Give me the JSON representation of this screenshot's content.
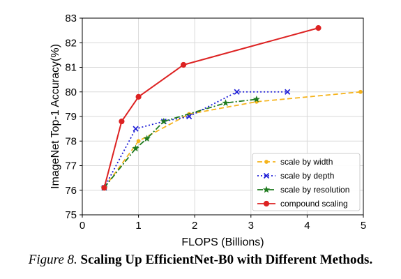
{
  "chart_data": {
    "type": "line",
    "xlabel": "FLOPS (Billions)",
    "ylabel": "ImageNet Top-1 Accuracy(%)",
    "xlim": [
      0,
      5
    ],
    "ylim": [
      75,
      83
    ],
    "xticks": [
      "0",
      "1",
      "2",
      "3",
      "4",
      "5"
    ],
    "yticks": [
      "75",
      "76",
      "77",
      "78",
      "79",
      "80",
      "81",
      "82",
      "83"
    ],
    "grid": true,
    "legend_position": "lower-right",
    "series": [
      {
        "name": "scale by width",
        "color": "#f5b31b",
        "style": "dashed",
        "marker": "dot",
        "x": [
          0.39,
          1.0,
          1.9,
          3.1,
          4.95
        ],
        "y": [
          76.1,
          78.0,
          79.1,
          79.6,
          80.0
        ]
      },
      {
        "name": "scale by depth",
        "color": "#1a1ad6",
        "style": "dotted",
        "marker": "x",
        "x": [
          0.39,
          0.95,
          1.45,
          1.9,
          2.75,
          3.65
        ],
        "y": [
          76.1,
          78.5,
          78.8,
          79.0,
          80.0,
          80.0
        ]
      },
      {
        "name": "scale by resolution",
        "color": "#1e7a1e",
        "style": "dashdot",
        "marker": "star",
        "x": [
          0.39,
          0.95,
          1.15,
          1.45,
          2.55,
          3.1
        ],
        "y": [
          76.1,
          77.7,
          78.1,
          78.8,
          79.55,
          79.7
        ]
      },
      {
        "name": "compound scaling",
        "color": "#dd2222",
        "style": "solid",
        "marker": "dot",
        "x": [
          0.39,
          0.7,
          1.0,
          1.8,
          4.2
        ],
        "y": [
          76.1,
          78.8,
          79.8,
          81.1,
          82.6
        ]
      }
    ]
  },
  "caption": {
    "label": "Figure 8.",
    "title": "Scaling Up EfficientNet-B0 with Different Methods."
  }
}
